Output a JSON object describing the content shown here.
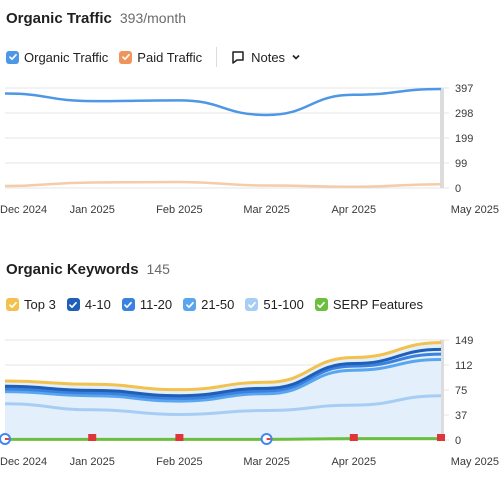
{
  "traffic": {
    "title": "Organic Traffic",
    "subtitle": "393/month",
    "legend": [
      {
        "label": "Organic Traffic",
        "color": "#4e97e6"
      },
      {
        "label": "Paid Traffic",
        "color": "#f0955a"
      }
    ],
    "notes_label": "Notes"
  },
  "keywords": {
    "title": "Organic Keywords",
    "subtitle": "145",
    "legend": [
      {
        "label": "Top 3",
        "color": "#f2c14e"
      },
      {
        "label": "4-10",
        "color": "#1f5fb8"
      },
      {
        "label": "11-20",
        "color": "#3b82e0"
      },
      {
        "label": "21-50",
        "color": "#5aa6ee"
      },
      {
        "label": "51-100",
        "color": "#a7cdf5"
      },
      {
        "label": "SERP Features",
        "color": "#6cbf3e"
      }
    ]
  },
  "chart_data": [
    {
      "type": "line",
      "x": [
        "Dec 2024",
        "Jan 2025",
        "Feb 2025",
        "Mar 2025",
        "Apr 2025",
        "May 2025"
      ],
      "xticks": [
        "Dec 2024",
        "Jan 2025",
        "Feb 2025",
        "Mar 2025",
        "Apr 2025",
        "May 2025"
      ],
      "yticks": [
        "397",
        "298",
        "199",
        "99",
        "0"
      ],
      "ylim": [
        0,
        397
      ],
      "grid": true,
      "series": [
        {
          "name": "Organic Traffic",
          "color": "#4e97e6",
          "values": [
            375,
            345,
            348,
            290,
            370,
            393
          ]
        },
        {
          "name": "Paid Traffic",
          "color": "#f5cba8",
          "values": [
            8,
            22,
            24,
            10,
            5,
            15
          ]
        }
      ]
    },
    {
      "type": "area",
      "x": [
        "Dec 2024",
        "Jan 2025",
        "Feb 2025",
        "Mar 2025",
        "Apr 2025",
        "May 2025"
      ],
      "xticks": [
        "Dec 2024",
        "Jan 2025",
        "Feb 2025",
        "Mar 2025",
        "Apr 2025",
        "May 2025"
      ],
      "yticks": [
        "149",
        "112",
        "75",
        "37",
        "0"
      ],
      "ylim": [
        0,
        149
      ],
      "grid": true,
      "series": [
        {
          "name": "Top 3",
          "color": "#f2c14e",
          "values": [
            88,
            83,
            75,
            86,
            123,
            145
          ]
        },
        {
          "name": "4-10",
          "color": "#1f5fb8",
          "values": [
            80,
            74,
            66,
            77,
            114,
            135
          ]
        },
        {
          "name": "11-20",
          "color": "#3b82e0",
          "values": [
            76,
            70,
            62,
            73,
            110,
            128
          ]
        },
        {
          "name": "21-50",
          "color": "#5aa6ee",
          "values": [
            72,
            66,
            58,
            69,
            104,
            120
          ]
        },
        {
          "name": "51-100",
          "color": "#a7cdf5",
          "values": [
            54,
            45,
            38,
            44,
            52,
            66
          ]
        },
        {
          "name": "SERP Features",
          "color": "#6cbf3e",
          "values": [
            1,
            1,
            1,
            1,
            2,
            2
          ]
        }
      ],
      "markers": [
        {
          "type": "google",
          "x": "Dec 2024"
        },
        {
          "type": "flag",
          "x": "Jan 2025"
        },
        {
          "type": "flag",
          "x": "Feb 2025"
        },
        {
          "type": "google",
          "x": "Mar 2025"
        },
        {
          "type": "flag",
          "x": "Apr 2025"
        },
        {
          "type": "flag",
          "x": "May 2025"
        }
      ]
    }
  ]
}
